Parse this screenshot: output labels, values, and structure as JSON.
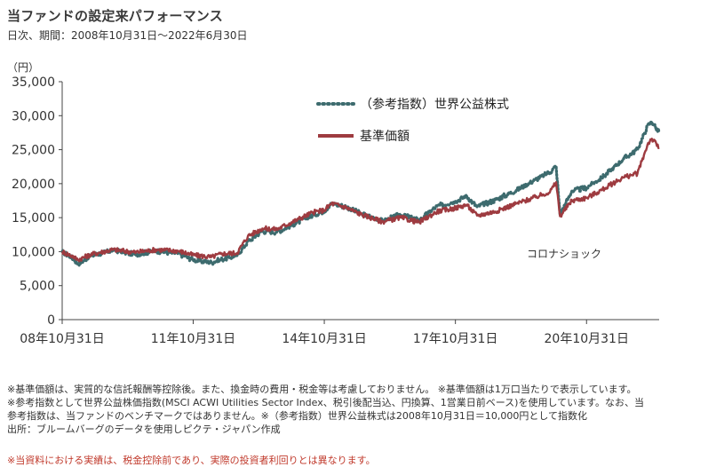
{
  "title": "当ファンドの設定来パフォーマンス",
  "subtitle": "日次、期間：2008年10月31日～2022年6月30日",
  "chart_data": {
    "type": "line",
    "unit_label": "（円）",
    "ylim": [
      0,
      35000
    ],
    "yticks": [
      0,
      5000,
      10000,
      15000,
      20000,
      25000,
      30000,
      35000
    ],
    "ytick_labels": [
      "0",
      "5,000",
      "10,000",
      "15,000",
      "20,000",
      "25,000",
      "30,000",
      "35,000"
    ],
    "xlim": [
      "2008-10-31",
      "2022-06-30"
    ],
    "xticks": [
      "2008-10-31",
      "2011-10-31",
      "2014-10-31",
      "2017-10-31",
      "2020-10-31"
    ],
    "xtick_labels": [
      "08年10月31日",
      "11年10月31日",
      "14年10月31日",
      "17年10月31日",
      "20年10月31日"
    ],
    "legend_position": "top-center",
    "grid": false,
    "annotation": {
      "text": "コロナショック",
      "x": "2020-03-23"
    },
    "series": [
      {
        "name": "（参考指数）世界公益株式",
        "style": "dotted",
        "color": "#3d6b6e",
        "points": [
          [
            "2008-10-31",
            10000
          ],
          [
            "2009-01-31",
            9000
          ],
          [
            "2009-03-10",
            8200
          ],
          [
            "2009-06-30",
            9400
          ],
          [
            "2009-12-31",
            10200
          ],
          [
            "2010-06-30",
            9600
          ],
          [
            "2010-12-31",
            10100
          ],
          [
            "2011-06-30",
            9700
          ],
          [
            "2011-10-31",
            8800
          ],
          [
            "2012-03-31",
            8400
          ],
          [
            "2012-06-30",
            8900
          ],
          [
            "2012-10-31",
            9400
          ],
          [
            "2013-01-31",
            11500
          ],
          [
            "2013-05-31",
            13000
          ],
          [
            "2013-09-30",
            12900
          ],
          [
            "2014-03-31",
            14400
          ],
          [
            "2014-07-31",
            15400
          ],
          [
            "2014-10-31",
            16000
          ],
          [
            "2014-12-31",
            17100
          ],
          [
            "2015-04-30",
            16600
          ],
          [
            "2015-08-31",
            15600
          ],
          [
            "2016-02-29",
            14500
          ],
          [
            "2016-07-31",
            15500
          ],
          [
            "2016-12-31",
            14600
          ],
          [
            "2017-05-31",
            16700
          ],
          [
            "2017-10-31",
            17400
          ],
          [
            "2018-01-31",
            18200
          ],
          [
            "2018-04-30",
            16600
          ],
          [
            "2018-09-30",
            17600
          ],
          [
            "2019-03-31",
            19100
          ],
          [
            "2019-08-31",
            20600
          ],
          [
            "2019-12-31",
            21700
          ],
          [
            "2020-02-20",
            22600
          ],
          [
            "2020-03-23",
            15500
          ],
          [
            "2020-06-30",
            18900
          ],
          [
            "2020-10-31",
            19400
          ],
          [
            "2021-03-31",
            21200
          ],
          [
            "2021-08-31",
            23600
          ],
          [
            "2021-12-31",
            25000
          ],
          [
            "2022-03-31",
            28700
          ],
          [
            "2022-04-30",
            29100
          ],
          [
            "2022-06-30",
            27500
          ]
        ]
      },
      {
        "name": "基準価額",
        "style": "solid",
        "color": "#9e3b40",
        "points": [
          [
            "2008-10-31",
            10000
          ],
          [
            "2009-01-31",
            9300
          ],
          [
            "2009-03-10",
            8800
          ],
          [
            "2009-06-30",
            9600
          ],
          [
            "2009-12-31",
            10300
          ],
          [
            "2010-06-30",
            9900
          ],
          [
            "2010-12-31",
            10300
          ],
          [
            "2011-06-30",
            10100
          ],
          [
            "2011-10-31",
            9500
          ],
          [
            "2012-03-31",
            9200
          ],
          [
            "2012-06-30",
            9700
          ],
          [
            "2012-10-31",
            9800
          ],
          [
            "2013-01-31",
            12300
          ],
          [
            "2013-05-31",
            13400
          ],
          [
            "2013-09-30",
            13300
          ],
          [
            "2014-03-31",
            14800
          ],
          [
            "2014-07-31",
            15800
          ],
          [
            "2014-10-31",
            16100
          ],
          [
            "2014-12-31",
            17100
          ],
          [
            "2015-04-30",
            16500
          ],
          [
            "2015-08-31",
            15500
          ],
          [
            "2016-02-29",
            14400
          ],
          [
            "2016-07-31",
            15000
          ],
          [
            "2016-12-31",
            14300
          ],
          [
            "2017-05-31",
            15900
          ],
          [
            "2017-10-31",
            16400
          ],
          [
            "2018-01-31",
            16900
          ],
          [
            "2018-04-30",
            15300
          ],
          [
            "2018-09-30",
            15900
          ],
          [
            "2019-03-31",
            17100
          ],
          [
            "2019-08-31",
            18000
          ],
          [
            "2019-12-31",
            18800
          ],
          [
            "2020-02-20",
            20200
          ],
          [
            "2020-03-23",
            15200
          ],
          [
            "2020-06-30",
            17500
          ],
          [
            "2020-10-31",
            17900
          ],
          [
            "2021-03-31",
            19300
          ],
          [
            "2021-08-31",
            20900
          ],
          [
            "2021-12-31",
            21500
          ],
          [
            "2022-03-31",
            26000
          ],
          [
            "2022-04-30",
            26600
          ],
          [
            "2022-06-30",
            25300
          ]
        ]
      }
    ]
  },
  "notes": {
    "line1": "※基準価額は、実質的な信託報酬等控除後。また、換金時の費用・税金等は考慮しておりません。 ※基準価額は1万口当たりで表示しています。",
    "line2": "※参考指数として世界公益株価指数(MSCI ACWI Utilities Sector Index、税引後配当込、円換算、1営業日前ベース)を使用しています。なお、当",
    "line3": "参考指数は、当ファンドのベンチマークではありません。※（参考指数）世界公益株式は2008年10月31日＝10,000円として指数化",
    "line4": "出所：ブルームバーグのデータを使用しピクテ・ジャパン作成"
  },
  "disclaimer": "※当資料における実績は、税金控除前であり、実際の投資者利回りとは異なります。"
}
